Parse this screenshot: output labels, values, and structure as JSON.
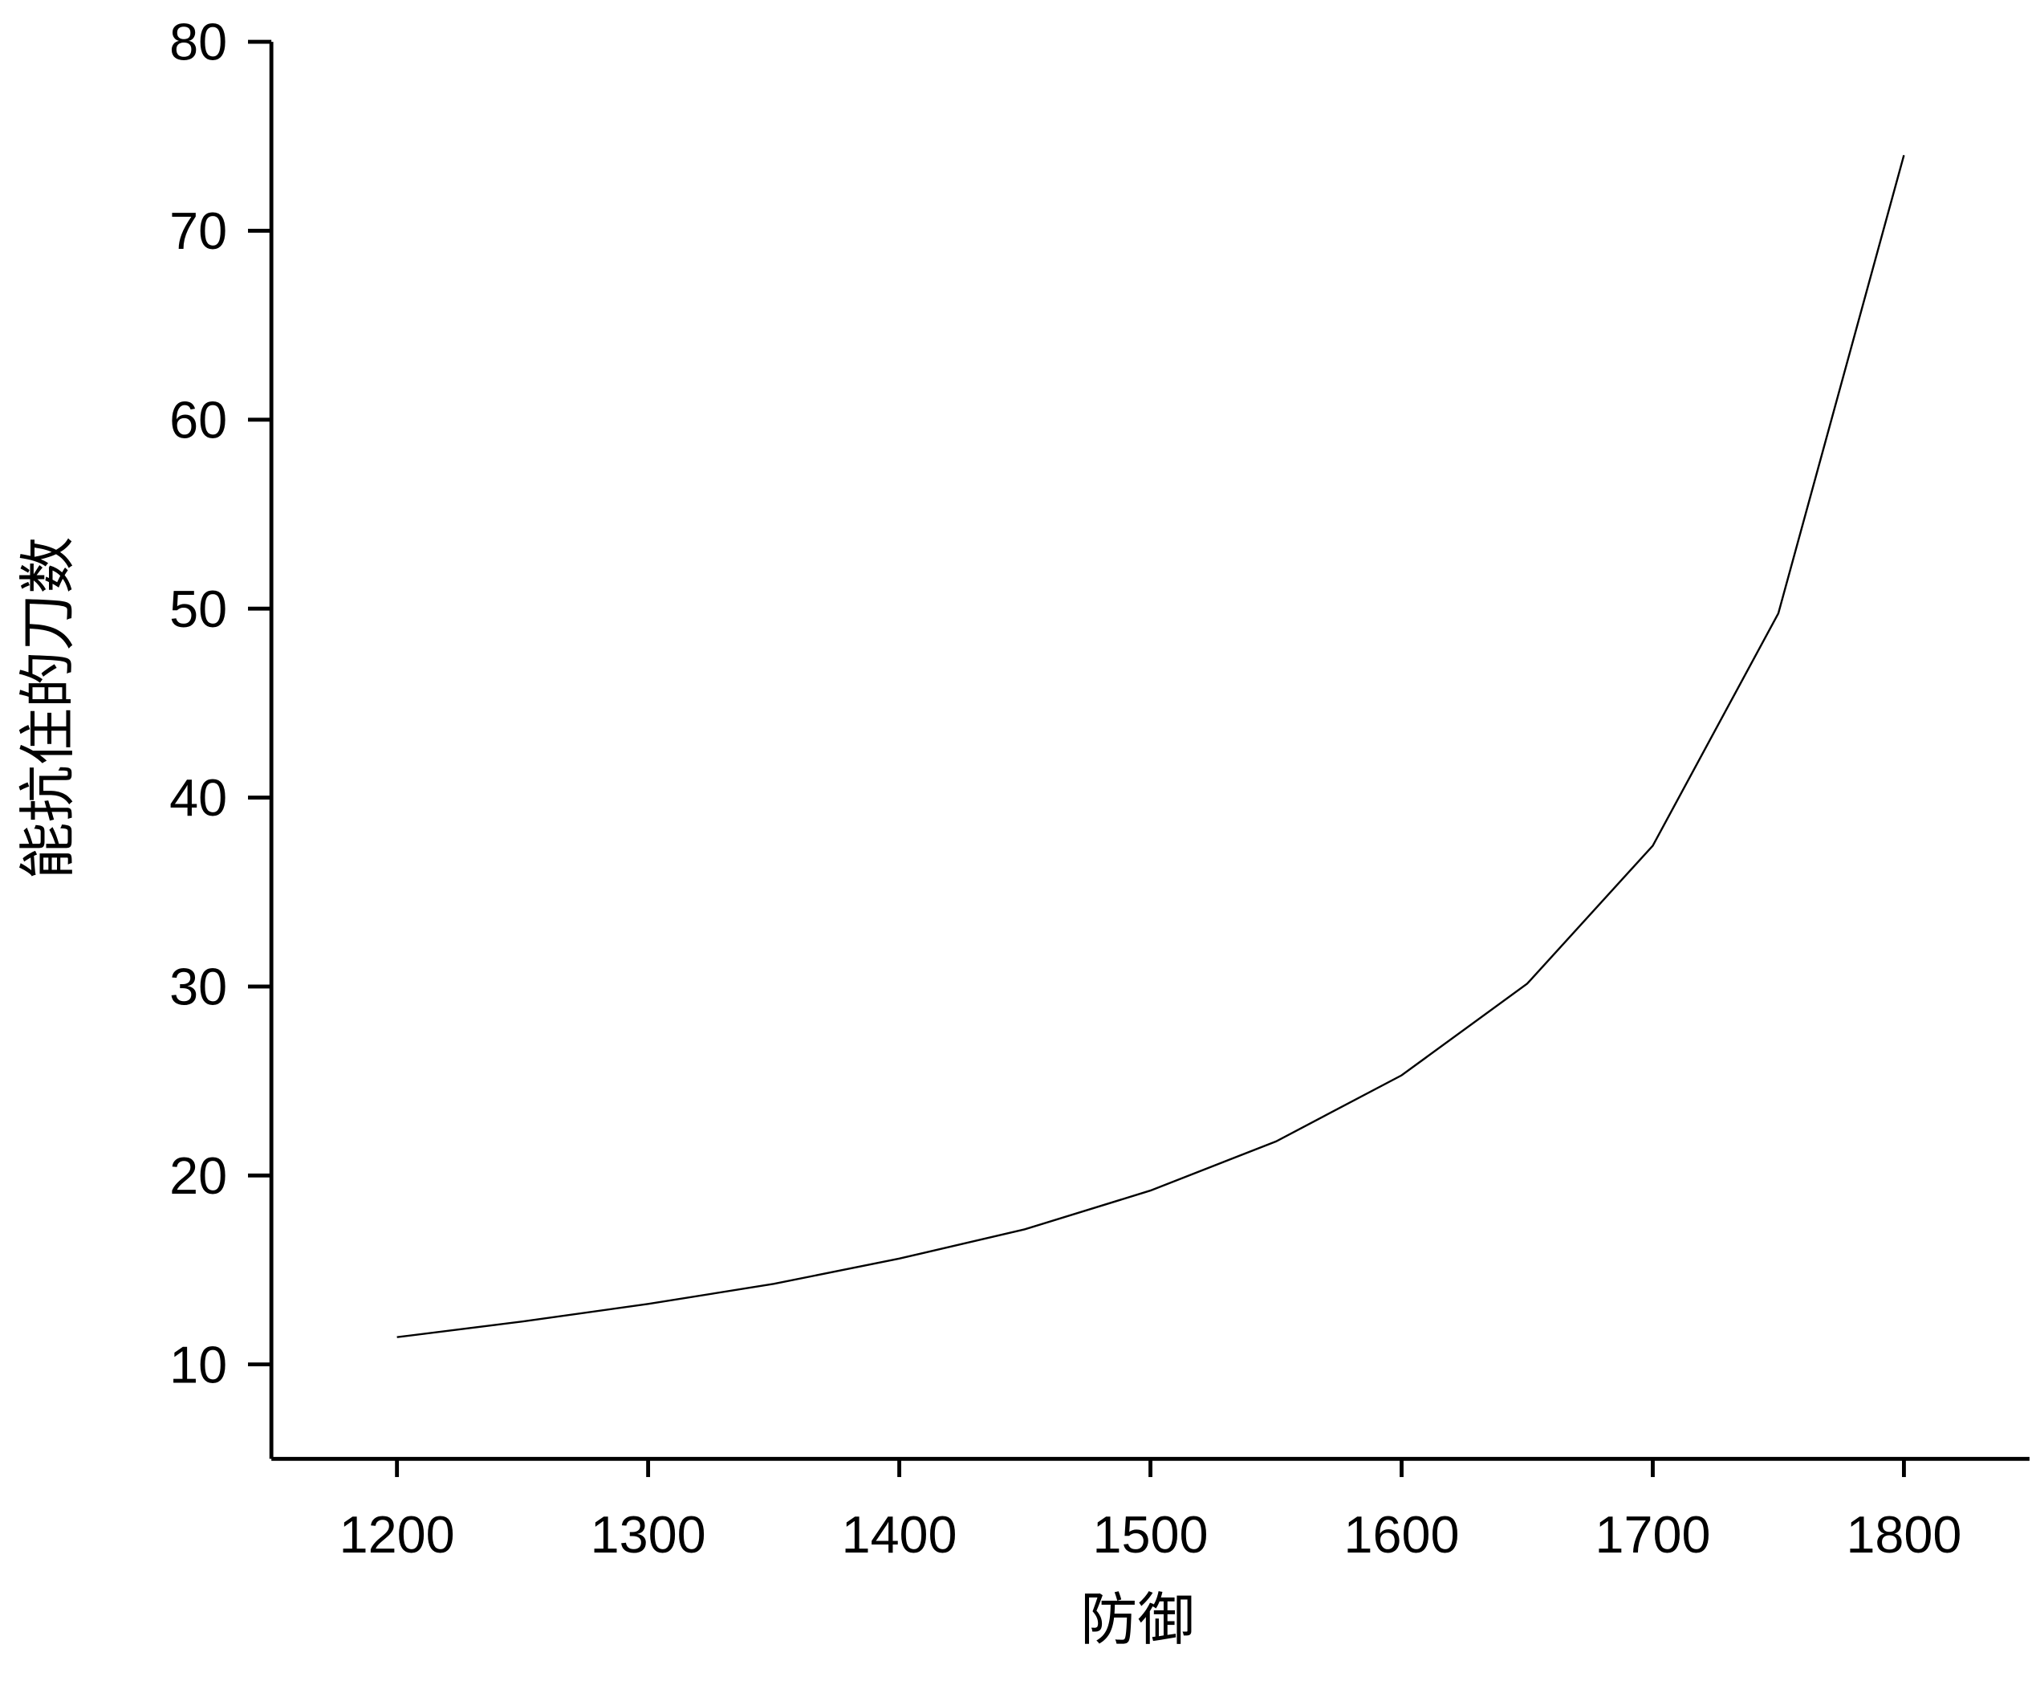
{
  "chart_data": {
    "type": "line",
    "x_label": "防御",
    "y_label": "能抗住的刀数",
    "x": [
      1200,
      1250,
      1300,
      1350,
      1400,
      1450,
      1500,
      1550,
      1600,
      1650,
      1700,
      1750,
      1800
    ],
    "series": [
      {
        "color": "#000000",
        "values": [
          11.44,
          12.27,
          13.2,
          14.26,
          15.6,
          17.15,
          19.2,
          21.8,
          25.3,
          30.15,
          37.45,
          49.75,
          74.0
        ]
      }
    ],
    "xlim": [
      1150,
      1850
    ],
    "xticks": [
      1200,
      1300,
      1400,
      1500,
      1600,
      1700,
      1800
    ],
    "ylim": [
      5,
      80
    ],
    "yticks": [
      10,
      20,
      30,
      40,
      50,
      60,
      70,
      80
    ],
    "grid": false
  }
}
